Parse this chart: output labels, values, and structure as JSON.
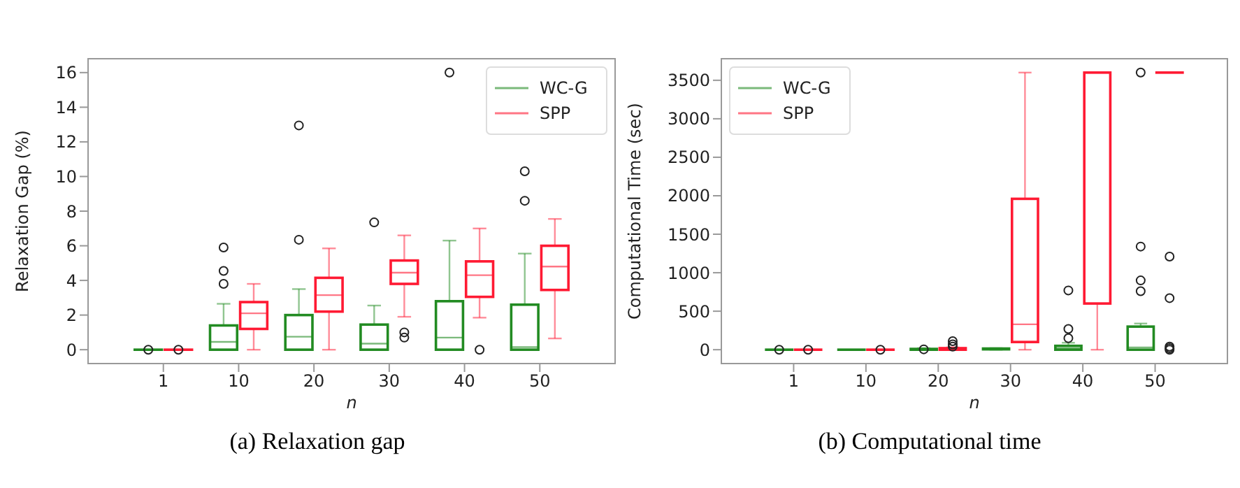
{
  "chart_data": [
    {
      "type": "box",
      "title": "(a) Relaxation gap",
      "xlabel": "n",
      "ylabel": "Relaxation Gap (%)",
      "categories": [
        "1",
        "10",
        "20",
        "30",
        "40",
        "50"
      ],
      "ylim": [
        -0.8,
        16.8
      ],
      "yticks": [
        0,
        2,
        4,
        6,
        8,
        10,
        12,
        14,
        16
      ],
      "legend": "top right",
      "series": [
        {
          "name": "WC-G",
          "color": "#228b22",
          "boxes": [
            {
              "low": 0,
              "q1": 0,
              "median": 0,
              "q3": 0,
              "high": 0,
              "outliers": [
                0
              ]
            },
            {
              "low": 0,
              "q1": 0,
              "median": 0.45,
              "q3": 1.4,
              "high": 2.65,
              "outliers": [
                3.8,
                4.55,
                5.9
              ]
            },
            {
              "low": 0,
              "q1": 0,
              "median": 0.75,
              "q3": 2.0,
              "high": 3.5,
              "outliers": [
                6.35,
                12.95
              ]
            },
            {
              "low": 0,
              "q1": 0,
              "median": 0.35,
              "q3": 1.45,
              "high": 2.55,
              "outliers": [
                7.35
              ]
            },
            {
              "low": 0,
              "q1": 0,
              "median": 0.7,
              "q3": 2.8,
              "high": 6.3,
              "outliers": [
                16
              ]
            },
            {
              "low": 0,
              "q1": 0,
              "median": 0.15,
              "q3": 2.6,
              "high": 5.55,
              "outliers": [
                8.6,
                10.3
              ]
            }
          ]
        },
        {
          "name": "SPP",
          "color": "#ff1a33",
          "boxes": [
            {
              "low": 0,
              "q1": 0,
              "median": 0,
              "q3": 0,
              "high": 0,
              "outliers": [
                0
              ]
            },
            {
              "low": 0,
              "q1": 1.2,
              "median": 2.1,
              "q3": 2.75,
              "high": 3.8
            },
            {
              "low": 0,
              "q1": 2.2,
              "median": 3.15,
              "q3": 4.15,
              "high": 5.85
            },
            {
              "low": 1.9,
              "q1": 3.8,
              "median": 4.45,
              "q3": 5.15,
              "high": 6.6,
              "outliers": [
                0.7,
                1.0
              ]
            },
            {
              "low": 1.85,
              "q1": 3.05,
              "median": 4.3,
              "q3": 5.1,
              "high": 7.0,
              "outliers": [
                0
              ]
            },
            {
              "low": 0.65,
              "q1": 3.45,
              "median": 4.8,
              "q3": 6.0,
              "high": 7.55
            }
          ]
        }
      ]
    },
    {
      "type": "box",
      "title": "(b) Computational time",
      "xlabel": "n",
      "ylabel": "Computational Time (sec)",
      "categories": [
        "1",
        "10",
        "20",
        "30",
        "40",
        "50"
      ],
      "ylim": [
        -180,
        3780
      ],
      "yticks": [
        0,
        500,
        1000,
        1500,
        2000,
        2500,
        3000,
        3500
      ],
      "legend": "top left",
      "series": [
        {
          "name": "WC-G",
          "color": "#228b22",
          "boxes": [
            {
              "low": 0,
              "q1": 0,
              "median": 0,
              "q3": 0,
              "high": 0,
              "outliers": [
                0
              ]
            },
            {
              "low": 0,
              "q1": 0,
              "median": 0,
              "q3": 0,
              "high": 0
            },
            {
              "low": 0,
              "q1": 0,
              "median": 5,
              "q3": 10,
              "high": 20,
              "outliers": [
                5
              ]
            },
            {
              "low": 0,
              "q1": 5,
              "median": 10,
              "q3": 15,
              "high": 20
            },
            {
              "low": 0,
              "q1": 0,
              "median": 20,
              "q3": 50,
              "high": 90,
              "outliers": [
                150,
                270,
                770
              ]
            },
            {
              "low": 0,
              "q1": 0,
              "median": 30,
              "q3": 300,
              "high": 340,
              "outliers": [
                760,
                900,
                1340,
                3600
              ]
            }
          ]
        },
        {
          "name": "SPP",
          "color": "#ff1a33",
          "boxes": [
            {
              "low": 0,
              "q1": 0,
              "median": 0,
              "q3": 0,
              "high": 0,
              "outliers": [
                0
              ]
            },
            {
              "low": 0,
              "q1": 0,
              "median": 0,
              "q3": 0,
              "high": 0,
              "outliers": [
                0
              ]
            },
            {
              "low": 0,
              "q1": 0,
              "median": 10,
              "q3": 20,
              "high": 30,
              "outliers": [
                40,
                70,
                110
              ]
            },
            {
              "low": 0,
              "q1": 100,
              "median": 330,
              "q3": 1960,
              "high": 3600
            },
            {
              "low": 0,
              "q1": 600,
              "median": 3600,
              "q3": 3600,
              "high": 3600
            },
            {
              "low": 3600,
              "q1": 3600,
              "median": 3600,
              "q3": 3600,
              "high": 3600,
              "outliers": [
                0,
                20,
                40,
                670,
                1210
              ]
            }
          ]
        }
      ]
    }
  ]
}
